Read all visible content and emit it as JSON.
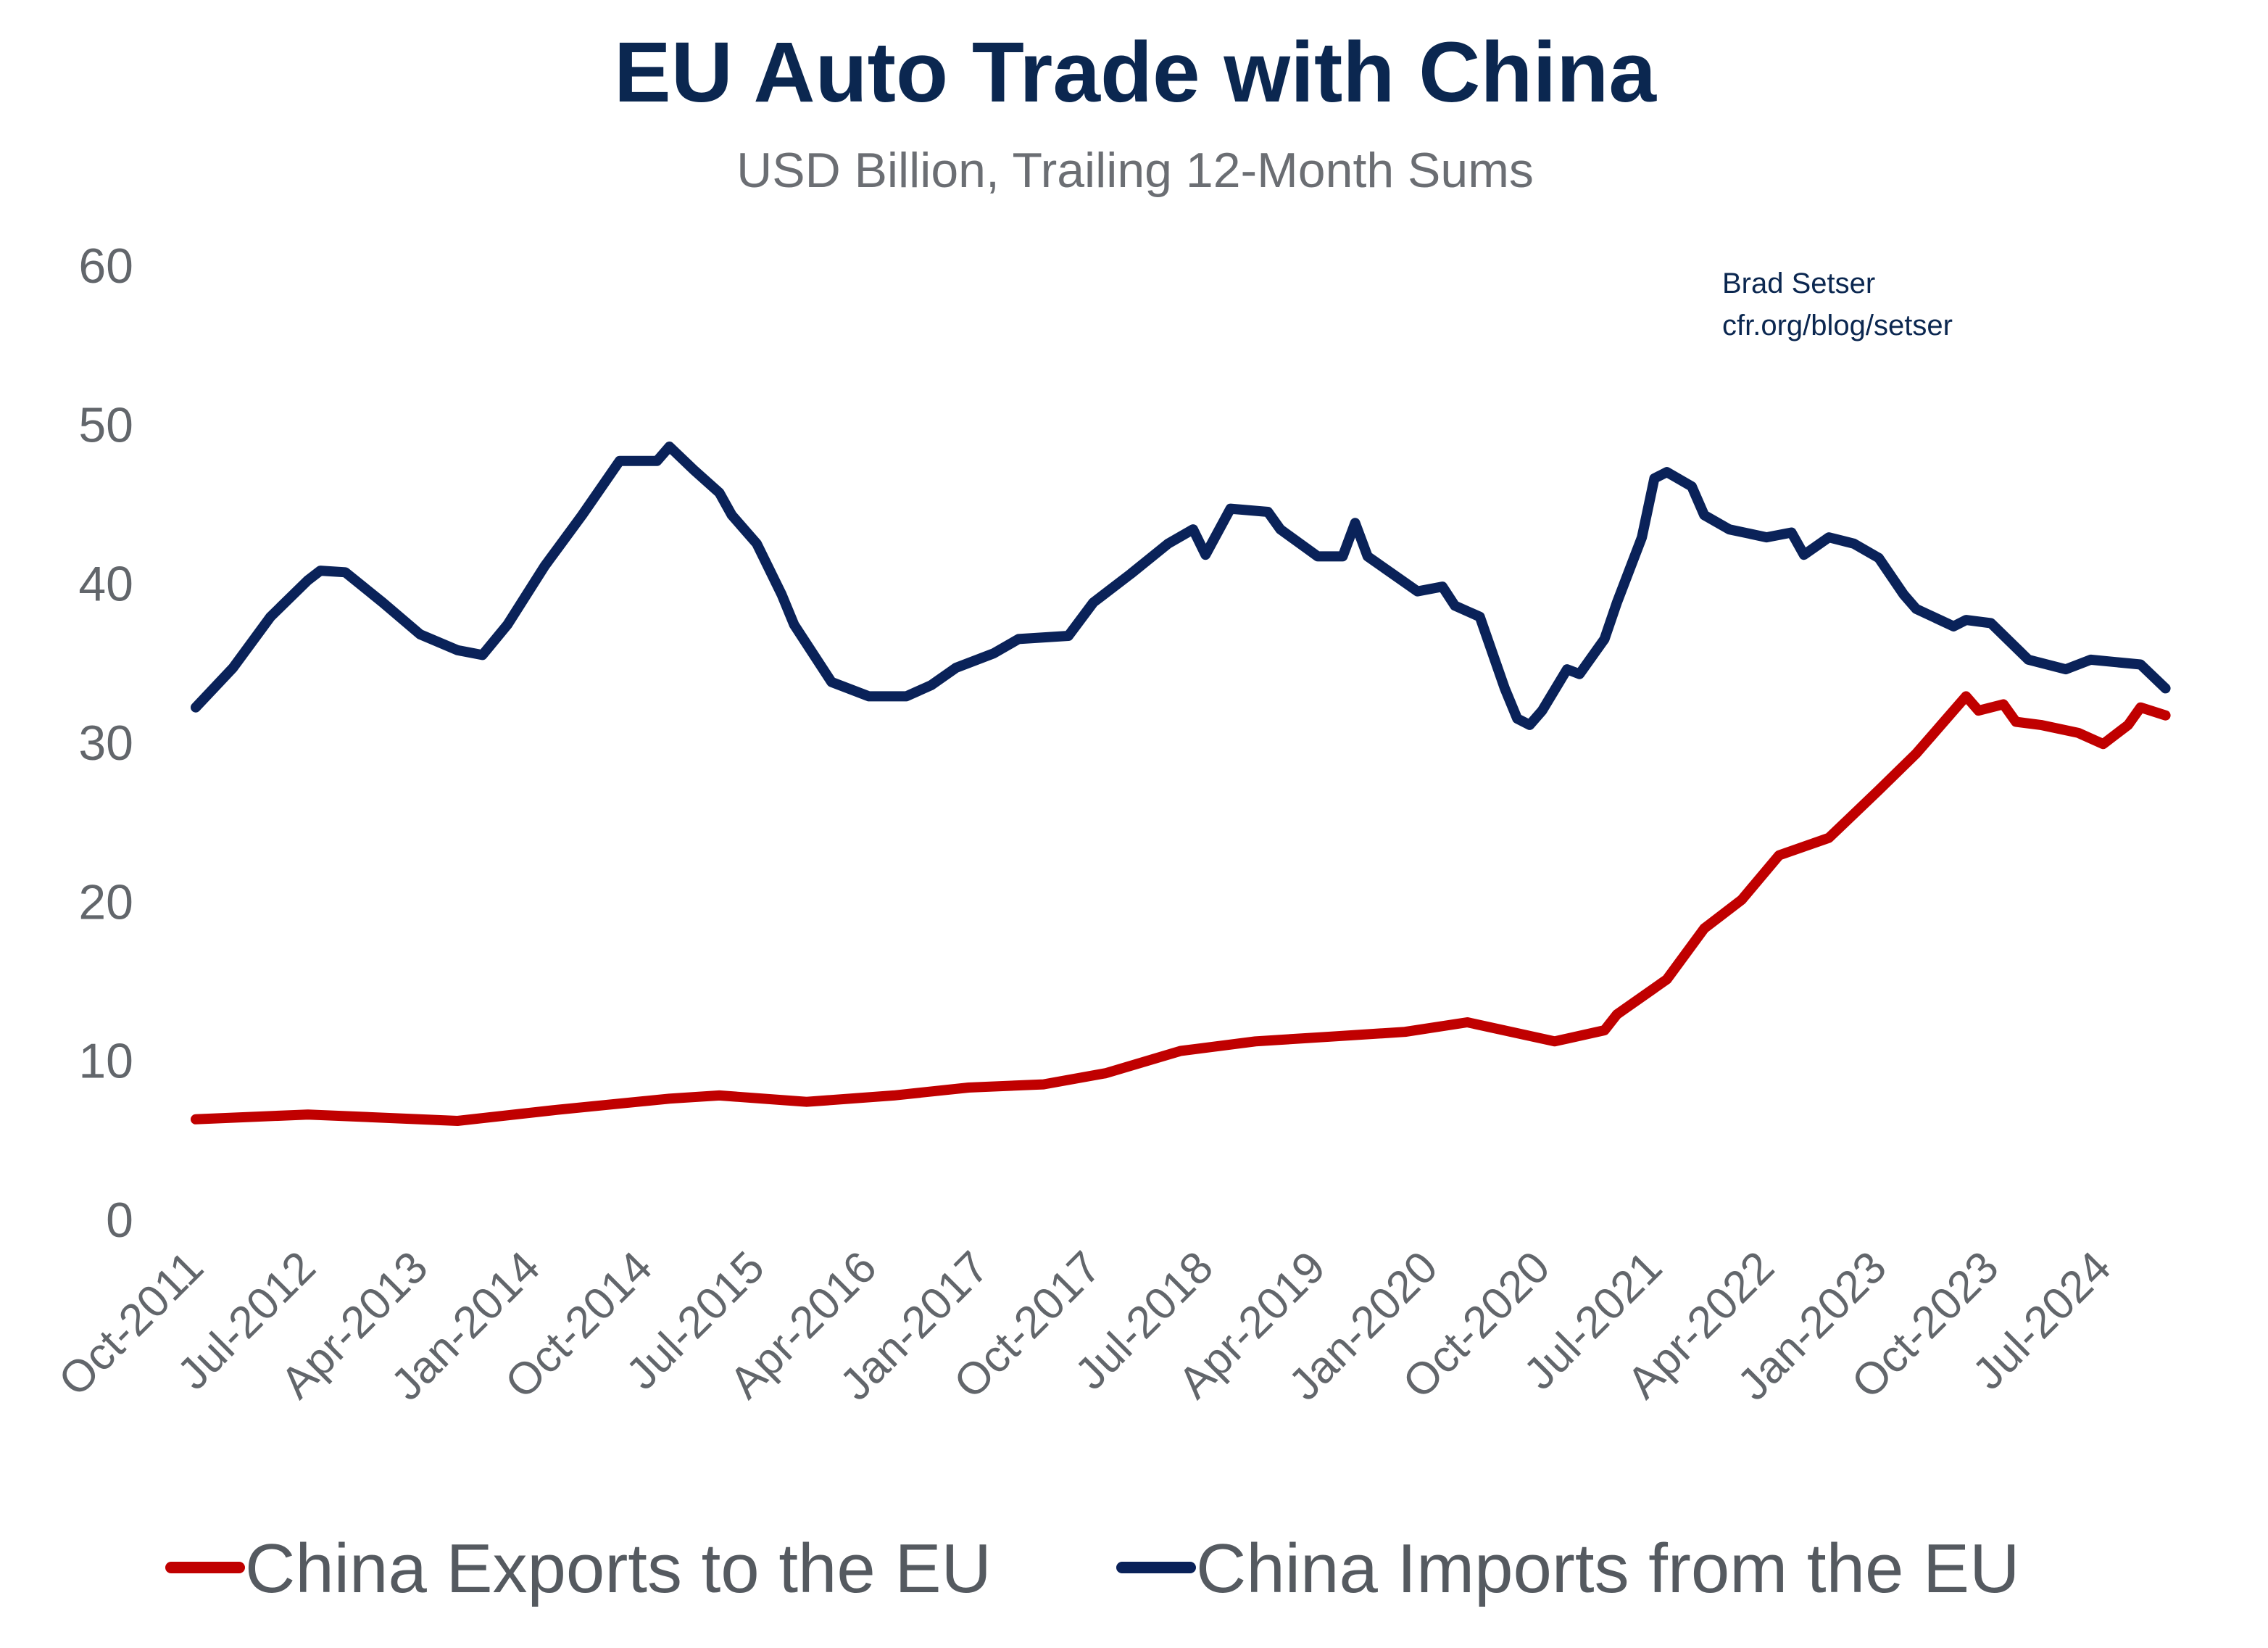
{
  "chart_data": {
    "type": "line",
    "title": "EU Auto Trade with China",
    "subtitle": "USD Billion, Trailing 12-Month Sums",
    "credit": [
      "Brad Setser",
      "cfr.org/blog/setser"
    ],
    "xlabel": "",
    "ylabel": "",
    "ylim": [
      0,
      60
    ],
    "yticks": [
      0,
      10,
      20,
      30,
      40,
      50,
      60
    ],
    "xticks": [
      "Oct-2011",
      "Jul-2012",
      "Apr-2013",
      "Jan-2014",
      "Oct-2014",
      "Jul-2015",
      "Apr-2016",
      "Jan-2017",
      "Oct-2017",
      "Jul-2018",
      "Apr-2019",
      "Jan-2020",
      "Oct-2020",
      "Jul-2021",
      "Apr-2022",
      "Jan-2023",
      "Oct-2023",
      "Jul-2024"
    ],
    "grid": false,
    "legend_position": "bottom",
    "series": [
      {
        "name": "China Exports to the EU",
        "color": "#c00000",
        "points": [
          [
            "2011-10",
            6.3
          ],
          [
            "2012-07",
            6.6
          ],
          [
            "2013-07",
            6.2
          ],
          [
            "2014-03",
            6.9
          ],
          [
            "2014-12",
            7.6
          ],
          [
            "2015-04",
            7.8
          ],
          [
            "2015-11",
            7.4
          ],
          [
            "2016-06",
            7.8
          ],
          [
            "2016-12",
            8.3
          ],
          [
            "2017-06",
            8.5
          ],
          [
            "2017-11",
            9.2
          ],
          [
            "2018-05",
            10.6
          ],
          [
            "2018-11",
            11.2
          ],
          [
            "2019-05",
            11.5
          ],
          [
            "2019-11",
            11.8
          ],
          [
            "2020-04",
            12.4
          ],
          [
            "2020-11",
            11.2
          ],
          [
            "2021-03",
            11.9
          ],
          [
            "2021-04",
            12.9
          ],
          [
            "2021-08",
            15.1
          ],
          [
            "2021-11",
            18.3
          ],
          [
            "2022-02",
            20.1
          ],
          [
            "2022-05",
            22.9
          ],
          [
            "2022-09",
            24.0
          ],
          [
            "2023-01",
            27.0
          ],
          [
            "2023-04",
            29.3
          ],
          [
            "2023-06",
            31.1
          ],
          [
            "2023-08",
            32.9
          ],
          [
            "2023-09",
            32.0
          ],
          [
            "2023-11",
            32.4
          ],
          [
            "2023-12",
            31.3
          ],
          [
            "2024-02",
            31.1
          ],
          [
            "2024-05",
            30.6
          ],
          [
            "2024-07",
            29.9
          ],
          [
            "2024-09",
            31.1
          ],
          [
            "2024-10",
            32.2
          ],
          [
            "2024-12",
            31.7
          ]
        ]
      },
      {
        "name": "China Imports from the EU",
        "color": "#0a2259",
        "points": [
          [
            "2011-10",
            32.2
          ],
          [
            "2012-01",
            34.7
          ],
          [
            "2012-04",
            37.9
          ],
          [
            "2012-07",
            40.2
          ],
          [
            "2012-08",
            40.8
          ],
          [
            "2012-10",
            40.7
          ],
          [
            "2013-01",
            38.8
          ],
          [
            "2013-04",
            36.8
          ],
          [
            "2013-07",
            35.8
          ],
          [
            "2013-09",
            35.5
          ],
          [
            "2013-11",
            37.4
          ],
          [
            "2014-02",
            41.1
          ],
          [
            "2014-05",
            44.3
          ],
          [
            "2014-08",
            47.7
          ],
          [
            "2014-11",
            47.7
          ],
          [
            "2014-12",
            48.6
          ],
          [
            "2015-02",
            47.1
          ],
          [
            "2015-04",
            45.7
          ],
          [
            "2015-05",
            44.3
          ],
          [
            "2015-07",
            42.5
          ],
          [
            "2015-09",
            39.3
          ],
          [
            "2015-10",
            37.4
          ],
          [
            "2016-01",
            33.8
          ],
          [
            "2016-04",
            32.9
          ],
          [
            "2016-07",
            32.9
          ],
          [
            "2016-09",
            33.6
          ],
          [
            "2016-11",
            34.7
          ],
          [
            "2017-02",
            35.6
          ],
          [
            "2017-04",
            36.5
          ],
          [
            "2017-08",
            36.7
          ],
          [
            "2017-10",
            38.8
          ],
          [
            "2018-01",
            40.6
          ],
          [
            "2018-04",
            42.5
          ],
          [
            "2018-06",
            43.4
          ],
          [
            "2018-07",
            41.8
          ],
          [
            "2018-09",
            44.7
          ],
          [
            "2018-12",
            44.5
          ],
          [
            "2019-01",
            43.4
          ],
          [
            "2019-04",
            41.7
          ],
          [
            "2019-06",
            41.7
          ],
          [
            "2019-07",
            43.8
          ],
          [
            "2019-08",
            41.7
          ],
          [
            "2019-10",
            40.6
          ],
          [
            "2019-12",
            39.5
          ],
          [
            "2020-02",
            39.8
          ],
          [
            "2020-03",
            38.6
          ],
          [
            "2020-05",
            37.9
          ],
          [
            "2020-07",
            33.4
          ],
          [
            "2020-08",
            31.5
          ],
          [
            "2020-09",
            31.1
          ],
          [
            "2020-10",
            32.0
          ],
          [
            "2020-12",
            34.6
          ],
          [
            "2021-01",
            34.3
          ],
          [
            "2021-03",
            36.5
          ],
          [
            "2021-04",
            38.8
          ],
          [
            "2021-06",
            42.9
          ],
          [
            "2021-07",
            46.6
          ],
          [
            "2021-08",
            47.0
          ],
          [
            "2021-10",
            46.1
          ],
          [
            "2021-11",
            44.3
          ],
          [
            "2022-01",
            43.4
          ],
          [
            "2022-04",
            42.9
          ],
          [
            "2022-06",
            43.2
          ],
          [
            "2022-07",
            41.8
          ],
          [
            "2022-09",
            42.9
          ],
          [
            "2022-11",
            42.5
          ],
          [
            "2023-01",
            41.6
          ],
          [
            "2023-03",
            39.3
          ],
          [
            "2023-04",
            38.4
          ],
          [
            "2023-07",
            37.3
          ],
          [
            "2023-08",
            37.7
          ],
          [
            "2023-10",
            37.5
          ],
          [
            "2024-01",
            35.2
          ],
          [
            "2024-04",
            34.6
          ],
          [
            "2024-06",
            35.2
          ],
          [
            "2024-10",
            34.9
          ],
          [
            "2024-12",
            33.4
          ]
        ]
      }
    ]
  }
}
